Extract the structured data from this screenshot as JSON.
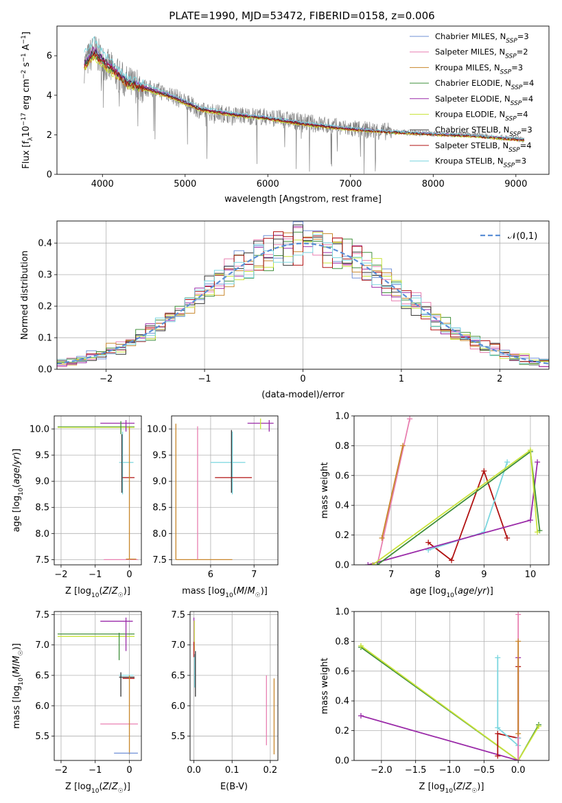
{
  "figure": {
    "title": "PLATE=1990, MJD=53472, FIBERID=0158, z=0.006"
  },
  "series_colors": [
    "#6f8fd6",
    "#e87fb0",
    "#c8862a",
    "#3f8f3a",
    "#9a2aa8",
    "#c9e33a",
    "#333333",
    "#b01010",
    "#7ad6df"
  ],
  "observed_color": "#808080",
  "chart_data": [
    {
      "id": "spectrum",
      "type": "line",
      "title": "PLATE=1990, MJD=53472, FIBERID=0158, z=0.006",
      "xlabel": "wavelength [Angstrom, rest frame]",
      "ylabel": "Flux [f_λ 10^-17 erg cm^-2 s^-1 A^-1]",
      "xlim": [
        3450,
        9400
      ],
      "ylim": [
        0,
        7.5
      ],
      "xticks": [
        4000,
        5000,
        6000,
        7000,
        8000,
        9000
      ],
      "yticks": [
        0,
        2,
        4,
        6
      ],
      "grid": false,
      "legend_position": "top-right",
      "observed": {
        "x": [
          3780,
          3900,
          4000,
          4300,
          4800,
          5200,
          5600,
          6000,
          6500,
          7000,
          7500,
          8000,
          8500,
          9100
        ],
        "y": [
          5.5,
          6.3,
          5.7,
          4.6,
          4.1,
          3.2,
          3.0,
          2.9,
          2.6,
          2.3,
          2.15,
          2.05,
          2.0,
          1.75
        ]
      },
      "model_x": [
        3780,
        3900,
        4000,
        4300,
        4800,
        5200,
        5600,
        6000,
        6500,
        7000,
        7500,
        8000,
        8500,
        9100
      ],
      "series": [
        {
          "name": "Chabrier MILES, N_SSP=3",
          "values": [
            5.6,
            6.2,
            5.8,
            4.7,
            4.0,
            3.3,
            3.05,
            2.85,
            2.55,
            2.3,
            2.15,
            2.05,
            1.95,
            1.75
          ]
        },
        {
          "name": "Salpeter MILES, N_SSP=2",
          "values": [
            5.5,
            6.1,
            5.7,
            4.6,
            3.9,
            3.25,
            3.0,
            2.8,
            2.5,
            2.28,
            2.12,
            2.02,
            1.93,
            1.72
          ]
        },
        {
          "name": "Kroupa MILES, N_SSP=3",
          "values": [
            5.4,
            6.0,
            5.6,
            4.5,
            3.95,
            3.2,
            2.95,
            2.8,
            2.45,
            2.25,
            2.1,
            2.0,
            1.9,
            1.7
          ]
        },
        {
          "name": "Chabrier ELODIE, N_SSP=4",
          "values": [
            5.5,
            6.1,
            5.7,
            4.6,
            3.95,
            3.25,
            3.0,
            2.82,
            2.5,
            2.28,
            2.12,
            2.03,
            1.94,
            1.73
          ]
        },
        {
          "name": "Salpeter ELODIE, N_SSP=4",
          "values": [
            5.7,
            6.3,
            5.9,
            4.7,
            4.05,
            3.35,
            3.05,
            2.88,
            2.55,
            2.32,
            2.16,
            2.06,
            1.96,
            1.76
          ]
        },
        {
          "name": "Kroupa ELODIE, N_SSP=4",
          "values": [
            5.3,
            5.9,
            5.5,
            4.5,
            3.9,
            3.2,
            2.95,
            2.78,
            2.45,
            2.25,
            2.1,
            2.0,
            1.9,
            1.7
          ]
        },
        {
          "name": "Chabrier STELIB, N_SSP=3",
          "values": [
            5.6,
            6.2,
            5.8,
            4.65,
            4.0,
            3.3,
            3.02,
            2.84,
            2.52,
            2.3,
            2.14,
            2.04,
            1.95,
            1.74
          ]
        },
        {
          "name": "Salpeter STELIB, N_SSP=4",
          "values": [
            5.5,
            6.1,
            5.7,
            4.6,
            3.95,
            3.25,
            3.0,
            2.82,
            2.5,
            2.28,
            2.12,
            2.02,
            1.93,
            1.72
          ]
        },
        {
          "name": "Kroupa STELIB, N_SSP=3",
          "values": [
            6.2,
            6.8,
            6.2,
            4.9,
            4.1,
            3.4,
            3.1,
            2.9,
            2.6,
            2.35,
            2.18,
            2.08,
            1.98,
            1.78
          ]
        }
      ]
    },
    {
      "id": "residuals",
      "type": "line",
      "xlabel": "(data-model)/error",
      "ylabel": "Normed distribution",
      "xlim": [
        -2.5,
        2.5
      ],
      "ylim": [
        0,
        0.47
      ],
      "xticks": [
        -2,
        -1,
        0,
        1,
        2
      ],
      "yticks": [
        0.0,
        0.1,
        0.2,
        0.3,
        0.4
      ],
      "grid": true,
      "legend_position": "top-right",
      "reference": {
        "name": "𝒩(0,1)",
        "color": "#5b8fd6"
      },
      "bin_width": 0.1
    },
    {
      "id": "age_vs_Z",
      "type": "scatter",
      "xlabel": "Z [log10(Z/Z☉)]",
      "ylabel": "age [log10(age/yr)]",
      "xlim": [
        -2.2,
        0.35
      ],
      "ylim": [
        7.4,
        10.25
      ],
      "xticks": [
        -2,
        -1,
        0
      ],
      "yticks": [
        7.5,
        8.0,
        8.5,
        9.0,
        9.5,
        10.0
      ],
      "grid": true
    },
    {
      "id": "age_vs_mass",
      "type": "scatter",
      "xlabel": "mass [log10(M/M☉)]",
      "xlim": [
        5.1,
        7.55
      ],
      "ylim": [
        7.4,
        10.25
      ],
      "xticks": [
        6,
        7
      ],
      "yticks": [
        7.5,
        8.0,
        8.5,
        9.0,
        9.5,
        10.0
      ],
      "grid": true
    },
    {
      "id": "weight_vs_age",
      "type": "line",
      "xlabel": "age [log10(age/yr)]",
      "ylabel": "mass weight",
      "xlim": [
        6.2,
        10.4
      ],
      "ylim": [
        0,
        1.0
      ],
      "xticks": [
        7,
        8,
        9,
        10
      ],
      "yticks": [
        0.0,
        0.2,
        0.4,
        0.6,
        0.8,
        1.0
      ],
      "grid": true,
      "series": [
        {
          "x": [
            6.7,
            7.4
          ],
          "y": [
            0.0,
            0.98
          ],
          "color": "#e87fb0"
        },
        {
          "x": [
            6.8,
            7.25
          ],
          "y": [
            0.18,
            0.8
          ],
          "color": "#c8862a"
        },
        {
          "x": [
            7.8,
            8.3,
            9.0,
            9.5
          ],
          "y": [
            0.15,
            0.03,
            0.63,
            0.18
          ],
          "color": "#b01010"
        },
        {
          "x": [
            7.8,
            9.0,
            9.5
          ],
          "y": [
            0.1,
            0.22,
            0.69
          ],
          "color": "#7ad6df"
        },
        {
          "x": [
            6.5,
            10.0,
            10.15
          ],
          "y": [
            0.0,
            0.3,
            0.69
          ],
          "color": "#9a2aa8"
        },
        {
          "x": [
            6.7,
            10.0,
            10.2
          ],
          "y": [
            0.0,
            0.76,
            0.23
          ],
          "color": "#3f8f3a"
        },
        {
          "x": [
            6.6,
            10.0,
            10.15
          ],
          "y": [
            0.0,
            0.77,
            0.22
          ],
          "color": "#c9e33a"
        }
      ]
    },
    {
      "id": "mass_vs_Z",
      "type": "scatter",
      "xlabel": "Z [log10(Z/Z☉)]",
      "ylabel": "mass [log10(M/M☉)]",
      "xlim": [
        -2.2,
        0.35
      ],
      "ylim": [
        5.1,
        7.55
      ],
      "xticks": [
        -2,
        -1,
        0
      ],
      "yticks": [
        5.5,
        6.0,
        6.5,
        7.0,
        7.5
      ],
      "grid": true
    },
    {
      "id": "mass_vs_EBV",
      "type": "scatter",
      "xlabel": "E(B-V)",
      "xlim": [
        -0.01,
        0.22
      ],
      "ylim": [
        5.1,
        7.55
      ],
      "xticks": [
        0.0,
        0.1,
        0.2
      ],
      "yticks": [
        5.5,
        6.0,
        6.5,
        7.0,
        7.5
      ],
      "grid": true
    },
    {
      "id": "weight_vs_Z",
      "type": "line",
      "xlabel": "Z [log10(Z/Z☉)]",
      "ylabel": "mass weight",
      "xlim": [
        -2.4,
        0.45
      ],
      "ylim": [
        0,
        1.0
      ],
      "xticks": [
        -2.0,
        -1.5,
        -1.0,
        -0.5,
        0.0
      ],
      "yticks": [
        0.0,
        0.2,
        0.4,
        0.6,
        0.8,
        1.0
      ],
      "grid": true,
      "series": [
        {
          "x": [
            -2.3,
            0.0,
            0.3
          ],
          "y": [
            0.76,
            0.0,
            0.24
          ],
          "color": "#3f8f3a"
        },
        {
          "x": [
            -2.3,
            0.0,
            0.3
          ],
          "y": [
            0.77,
            0.0,
            0.23
          ],
          "color": "#c9e33a"
        },
        {
          "x": [
            -2.3,
            0.0,
            0.0
          ],
          "y": [
            0.3,
            0.0,
            0.69
          ],
          "color": "#9a2aa8"
        },
        {
          "x": [
            -0.3,
            -0.3,
            0.0,
            0.0
          ],
          "y": [
            0.03,
            0.18,
            0.15,
            0.63
          ],
          "color": "#b01010"
        },
        {
          "x": [
            -0.3,
            -0.3,
            0.0,
            0.0
          ],
          "y": [
            0.69,
            0.22,
            0.1,
            0.15
          ],
          "color": "#7ad6df"
        },
        {
          "x": [
            0.0,
            0.0
          ],
          "y": [
            0.0,
            0.98
          ],
          "color": "#e87fb0"
        },
        {
          "x": [
            0.0,
            0.0
          ],
          "y": [
            0.18,
            0.8
          ],
          "color": "#c8862a"
        }
      ]
    }
  ]
}
